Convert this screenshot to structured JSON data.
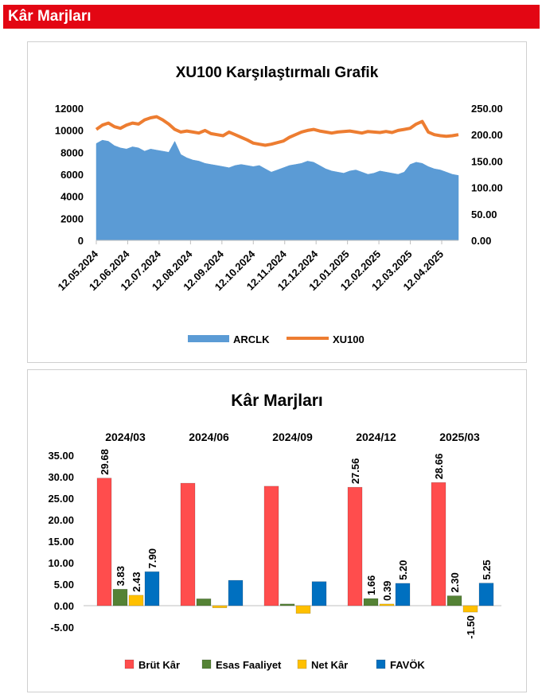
{
  "header": {
    "title": "Kâr Marjları"
  },
  "chart_data": [
    {
      "type": "line",
      "title": "XU100 Karşılaştırmalı  Grafik",
      "x_tick_labels": [
        "12.05.2024",
        "12.06.2024",
        "12.07.2024",
        "12.08.2024",
        "12.09.2024",
        "12.10.2024",
        "12.11.2024",
        "12.12.2024",
        "12.01.2025",
        "12.02.2025",
        "12.03.2025",
        "12.04.2025"
      ],
      "y_left_ticks": [
        "0",
        "2000",
        "4000",
        "6000",
        "8000",
        "10000",
        "12000"
      ],
      "y_right_ticks": [
        "0.00",
        "50.00",
        "100.00",
        "150.00",
        "200.00",
        "250.00"
      ],
      "ylim_left": [
        0,
        12000
      ],
      "ylim_right": [
        0,
        250
      ],
      "legend": [
        "ARCLK",
        "XU100"
      ],
      "legend_position": "bottom",
      "series": [
        {
          "name": "ARCLK",
          "type": "area",
          "axis": "left",
          "color": "#5b9bd5",
          "values": [
            8800,
            9100,
            9000,
            8600,
            8400,
            8300,
            8500,
            8400,
            8100,
            8300,
            8200,
            8100,
            8000,
            9000,
            7800,
            7500,
            7300,
            7200,
            7000,
            6900,
            6800,
            6700,
            6600,
            6800,
            6900,
            6800,
            6700,
            6800,
            6500,
            6200,
            6400,
            6600,
            6800,
            6900,
            7000,
            7200,
            7100,
            6800,
            6500,
            6300,
            6200,
            6100,
            6300,
            6400,
            6200,
            6000,
            6100,
            6300,
            6200,
            6100,
            6000,
            6200,
            6900,
            7100,
            7000,
            6700,
            6500,
            6400,
            6200,
            6000,
            5900
          ]
        },
        {
          "name": "XU100",
          "type": "line",
          "axis": "right",
          "color": "#ed7d31",
          "values": [
            210,
            218,
            222,
            215,
            212,
            218,
            222,
            220,
            228,
            232,
            234,
            228,
            220,
            210,
            205,
            207,
            205,
            203,
            208,
            202,
            200,
            198,
            205,
            200,
            195,
            190,
            184,
            182,
            180,
            182,
            185,
            188,
            195,
            200,
            205,
            208,
            210,
            207,
            205,
            203,
            205,
            206,
            207,
            205,
            203,
            206,
            205,
            204,
            206,
            204,
            208,
            210,
            212,
            220,
            225,
            205,
            200,
            198,
            197,
            198,
            200
          ]
        }
      ]
    },
    {
      "type": "bar",
      "title": "Kâr Marjları",
      "categories": [
        "2024/03",
        "2024/06",
        "2024/09",
        "2024/12",
        "2025/03"
      ],
      "ylim": [
        -5,
        35
      ],
      "y_ticks": [
        "-5.00",
        "0.00",
        "5.00",
        "10.00",
        "15.00",
        "20.00",
        "25.00",
        "30.00",
        "35.00"
      ],
      "legend": [
        "Brüt Kâr",
        "Esas Faaliyet",
        "Net Kâr",
        "FAVÖK"
      ],
      "legend_position": "bottom",
      "series": [
        {
          "name": "Brüt Kâr",
          "color": "#ff4d4d",
          "values": [
            29.68,
            28.5,
            27.8,
            27.56,
            28.66
          ],
          "labels": [
            "29.68",
            "",
            "",
            "27.56",
            "28.66"
          ]
        },
        {
          "name": "Esas Faaliyet",
          "color": "#548235",
          "values": [
            3.83,
            1.6,
            0.4,
            1.66,
            2.3
          ],
          "labels": [
            "3.83",
            "",
            "",
            "1.66",
            "2.30"
          ]
        },
        {
          "name": "Net Kâr",
          "color": "#ffc000",
          "values": [
            2.43,
            -0.5,
            -1.8,
            0.39,
            -1.5
          ],
          "labels": [
            "2.43",
            "",
            "",
            "0.39",
            "-1.50"
          ]
        },
        {
          "name": "FAVÖK",
          "color": "#0070c0",
          "values": [
            7.9,
            5.9,
            5.6,
            5.2,
            5.25
          ],
          "labels": [
            "7.90",
            "",
            "",
            "5.20",
            "5.25"
          ]
        }
      ]
    }
  ]
}
